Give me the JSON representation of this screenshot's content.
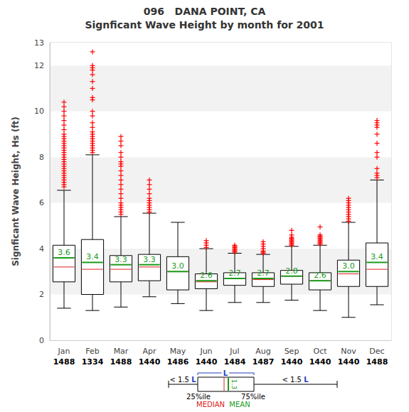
{
  "chart_data": {
    "type": "boxplot",
    "title": "096   DANA POINT, CA",
    "subtitle": "Signficant Wave Height by month for 2001",
    "y_label": "Signficant Wave Height, Hs (ft)",
    "categories": [
      "Jan",
      "Feb",
      "Mar",
      "Apr",
      "May",
      "Jun",
      "Jul",
      "Aug",
      "Sep",
      "Oct",
      "Nov",
      "Dec"
    ],
    "counts": [
      1488,
      1334,
      1488,
      1440,
      1486,
      1440,
      1484,
      1487,
      1440,
      1440,
      1440,
      1488
    ],
    "whisker_low": [
      1.4,
      1.3,
      1.45,
      1.9,
      1.6,
      1.3,
      1.65,
      1.65,
      1.75,
      1.3,
      1.0,
      1.55
    ],
    "q1": [
      2.55,
      2.0,
      2.55,
      2.6,
      2.2,
      2.25,
      2.4,
      2.35,
      2.45,
      2.2,
      2.35,
      2.35
    ],
    "median": [
      3.2,
      3.1,
      3.1,
      3.2,
      3.0,
      2.55,
      2.7,
      2.65,
      2.8,
      2.6,
      2.9,
      3.1
    ],
    "q3": [
      4.15,
      4.4,
      3.7,
      3.75,
      3.65,
      2.9,
      2.95,
      2.95,
      3.05,
      2.95,
      3.5,
      4.25
    ],
    "whisker_high": [
      6.55,
      8.1,
      5.4,
      5.55,
      5.15,
      4.0,
      3.8,
      3.75,
      4.1,
      4.15,
      5.15,
      7.0
    ],
    "mean": [
      3.6,
      3.4,
      3.3,
      3.3,
      3.0,
      2.6,
      2.7,
      2.7,
      2.8,
      2.6,
      3.0,
      3.4
    ],
    "mean_labels": [
      "3.6",
      "3.4",
      "3.3",
      "3.3",
      "3.0",
      "2.6",
      "2.7",
      "2.7",
      "2.8",
      "2.6",
      "3.0",
      "3.4"
    ],
    "outliers": [
      [
        6.7,
        6.8,
        6.9,
        7.0,
        7.1,
        7.2,
        7.3,
        7.4,
        7.5,
        7.6,
        7.7,
        7.8,
        7.9,
        8.0,
        8.1,
        8.2,
        8.3,
        8.4,
        8.5,
        8.6,
        8.7,
        8.8,
        8.9,
        9.0,
        9.2,
        9.4,
        9.6,
        9.8,
        10.0,
        10.2,
        10.4
      ],
      [
        8.2,
        8.3,
        8.4,
        8.5,
        8.6,
        8.7,
        8.8,
        8.9,
        9.0,
        9.1,
        9.3,
        9.5,
        9.8,
        10.0,
        10.5,
        10.6,
        11.0,
        11.3,
        11.6,
        11.8,
        11.9,
        12.0,
        12.6
      ],
      [
        5.5,
        5.6,
        5.7,
        5.8,
        5.9,
        6.0,
        6.2,
        6.4,
        6.6,
        6.8,
        7.0,
        7.2,
        7.4,
        7.6,
        7.7,
        7.8,
        8.0,
        8.2,
        8.5,
        8.7,
        8.9
      ],
      [
        5.6,
        5.7,
        5.8,
        5.9,
        6.0,
        6.1,
        6.2,
        6.4,
        6.6,
        6.8,
        7.0
      ],
      [],
      [
        4.05,
        4.15,
        4.25,
        4.35
      ],
      [
        3.85,
        3.9,
        3.95,
        4.0,
        4.05,
        4.1,
        4.15
      ],
      [
        3.8,
        3.85,
        3.9,
        4.0,
        4.1,
        4.2,
        4.3
      ],
      [
        4.15,
        4.2,
        4.25,
        4.3,
        4.35,
        4.4,
        4.45,
        4.5,
        4.6,
        4.8
      ],
      [
        4.2,
        4.25,
        4.3,
        4.35,
        4.4,
        4.45,
        4.5,
        4.55,
        4.6,
        4.95
      ],
      [
        5.2,
        5.3,
        5.4,
        5.5,
        5.6,
        5.7,
        5.8,
        5.9,
        6.0,
        6.1,
        6.2
      ],
      [
        7.1,
        7.2,
        7.3,
        7.5,
        8.0,
        8.2,
        8.6,
        9.0,
        9.3,
        9.4,
        9.5,
        9.6
      ]
    ],
    "ylim": [
      0,
      13
    ],
    "yticks": [
      0,
      2,
      4,
      6,
      8,
      10,
      12
    ],
    "grid": true,
    "legend_diagram": {
      "iqr": "L",
      "whisker_left": "< 1.5 ",
      "whisker_right": "< 1.5 ",
      "q1": "25%ile",
      "q3": "75%ile",
      "median": "MEDIAN",
      "mean": "MEAN",
      "mean_mark": "1.3"
    }
  }
}
